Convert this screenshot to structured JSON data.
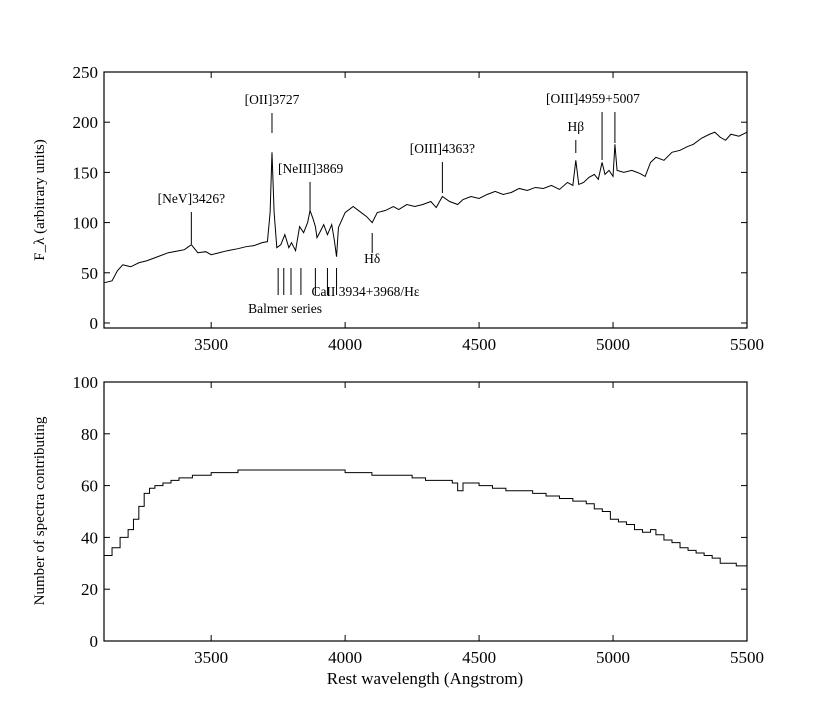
{
  "chart_data": [
    {
      "type": "line",
      "title": "",
      "xlabel": "",
      "ylabel": "F_λ (arbitrary units)",
      "xlim": [
        3100,
        5500
      ],
      "ylim": [
        -5,
        250
      ],
      "grid": false,
      "x_ticks": [
        "3500",
        "4000",
        "4500",
        "5000",
        "5500"
      ],
      "y_ticks": [
        "0",
        "50",
        "100",
        "150",
        "200",
        "250"
      ],
      "series": [
        {
          "name": "",
          "points": [
            [
              3100,
              40
            ],
            [
              3130,
              42
            ],
            [
              3150,
              52
            ],
            [
              3170,
              58
            ],
            [
              3200,
              56
            ],
            [
              3230,
              60
            ],
            [
              3260,
              62
            ],
            [
              3300,
              66
            ],
            [
              3340,
              70
            ],
            [
              3380,
              72
            ],
            [
              3400,
              73
            ],
            [
              3426,
              78
            ],
            [
              3450,
              70
            ],
            [
              3480,
              71
            ],
            [
              3500,
              68
            ],
            [
              3530,
              70
            ],
            [
              3560,
              72
            ],
            [
              3600,
              74
            ],
            [
              3630,
              76
            ],
            [
              3660,
              77
            ],
            [
              3690,
              80
            ],
            [
              3710,
              81
            ],
            [
              3720,
              110
            ],
            [
              3727,
              170
            ],
            [
              3735,
              110
            ],
            [
              3745,
              75
            ],
            [
              3760,
              78
            ],
            [
              3775,
              88
            ],
            [
              3790,
              75
            ],
            [
              3800,
              80
            ],
            [
              3815,
              72
            ],
            [
              3830,
              96
            ],
            [
              3845,
              90
            ],
            [
              3860,
              100
            ],
            [
              3869,
              112
            ],
            [
              3880,
              104
            ],
            [
              3889,
              96
            ],
            [
              3895,
              85
            ],
            [
              3905,
              90
            ],
            [
              3920,
              98
            ],
            [
              3934,
              88
            ],
            [
              3950,
              98
            ],
            [
              3960,
              82
            ],
            [
              3968,
              66
            ],
            [
              3975,
              95
            ],
            [
              4000,
              110
            ],
            [
              4030,
              116
            ],
            [
              4060,
              110
            ],
            [
              4080,
              106
            ],
            [
              4101,
              100
            ],
            [
              4120,
              110
            ],
            [
              4150,
              112
            ],
            [
              4180,
              116
            ],
            [
              4200,
              113
            ],
            [
              4230,
              118
            ],
            [
              4260,
              116
            ],
            [
              4290,
              118
            ],
            [
              4320,
              121
            ],
            [
              4340,
              115
            ],
            [
              4363,
              126
            ],
            [
              4390,
              121
            ],
            [
              4420,
              118
            ],
            [
              4440,
              123
            ],
            [
              4470,
              126
            ],
            [
              4500,
              124
            ],
            [
              4530,
              128
            ],
            [
              4560,
              131
            ],
            [
              4590,
              128
            ],
            [
              4620,
              130
            ],
            [
              4650,
              134
            ],
            [
              4680,
              132
            ],
            [
              4710,
              135
            ],
            [
              4740,
              134
            ],
            [
              4770,
              137
            ],
            [
              4800,
              133
            ],
            [
              4830,
              140
            ],
            [
              4850,
              137
            ],
            [
              4861,
              162
            ],
            [
              4872,
              138
            ],
            [
              4890,
              140
            ],
            [
              4910,
              145
            ],
            [
              4930,
              148
            ],
            [
              4945,
              143
            ],
            [
              4959,
              160
            ],
            [
              4970,
              148
            ],
            [
              4985,
              152
            ],
            [
              5000,
              146
            ],
            [
              5007,
              178
            ],
            [
              5015,
              152
            ],
            [
              5040,
              150
            ],
            [
              5070,
              152
            ],
            [
              5100,
              149
            ],
            [
              5120,
              146
            ],
            [
              5140,
              160
            ],
            [
              5160,
              165
            ],
            [
              5190,
              162
            ],
            [
              5220,
              170
            ],
            [
              5250,
              172
            ],
            [
              5280,
              176
            ],
            [
              5300,
              178
            ],
            [
              5330,
              184
            ],
            [
              5360,
              188
            ],
            [
              5380,
              190
            ],
            [
              5400,
              185
            ],
            [
              5420,
              182
            ],
            [
              5440,
              188
            ],
            [
              5470,
              186
            ],
            [
              5500,
              190
            ]
          ]
        }
      ],
      "annotations": [
        {
          "text": "[NeV]3426?",
          "x": 3426
        },
        {
          "text": "[OII]3727",
          "x": 3727
        },
        {
          "text": "[NeIII]3869",
          "x": 3869
        },
        {
          "text": "[OIII]4363?",
          "x": 4363
        },
        {
          "text": "[OIII]4959+5007",
          "x": 5007
        },
        {
          "text": "Hβ",
          "x": 4861
        },
        {
          "text": "Hδ",
          "x": 4101
        },
        {
          "text": "CaII 3934+3968/Hε",
          "x": 3934
        },
        {
          "text": "Balmer series",
          "x": 3750
        }
      ],
      "marker_lines_x": [
        3750,
        3771,
        3798,
        3835,
        3889,
        3934,
        3968
      ]
    },
    {
      "type": "line",
      "title": "",
      "xlabel": "Rest wavelength (Angstrom)",
      "ylabel": "Number of spectra contributing",
      "xlim": [
        3100,
        5500
      ],
      "ylim": [
        0,
        100
      ],
      "grid": false,
      "x_ticks": [
        "3500",
        "4000",
        "4500",
        "5000",
        "5500"
      ],
      "y_ticks": [
        "0",
        "20",
        "40",
        "60",
        "80",
        "100"
      ],
      "series": [
        {
          "name": "",
          "points": [
            [
              3100,
              33
            ],
            [
              3130,
              36
            ],
            [
              3160,
              40
            ],
            [
              3190,
              43
            ],
            [
              3210,
              47
            ],
            [
              3230,
              52
            ],
            [
              3250,
              57
            ],
            [
              3270,
              59
            ],
            [
              3290,
              60
            ],
            [
              3320,
              61
            ],
            [
              3350,
              62
            ],
            [
              3380,
              63
            ],
            [
              3400,
              63
            ],
            [
              3430,
              64
            ],
            [
              3460,
              64
            ],
            [
              3500,
              65
            ],
            [
              3550,
              65
            ],
            [
              3600,
              66
            ],
            [
              3650,
              66
            ],
            [
              3700,
              66
            ],
            [
              3750,
              66
            ],
            [
              3800,
              66
            ],
            [
              3850,
              66
            ],
            [
              3900,
              66
            ],
            [
              3950,
              66
            ],
            [
              4000,
              65
            ],
            [
              4050,
              65
            ],
            [
              4100,
              64
            ],
            [
              4150,
              64
            ],
            [
              4200,
              64
            ],
            [
              4250,
              63
            ],
            [
              4300,
              62
            ],
            [
              4350,
              62
            ],
            [
              4400,
              61
            ],
            [
              4420,
              58
            ],
            [
              4440,
              61
            ],
            [
              4500,
              60
            ],
            [
              4550,
              59
            ],
            [
              4600,
              58
            ],
            [
              4650,
              58
            ],
            [
              4700,
              57
            ],
            [
              4750,
              56
            ],
            [
              4800,
              55
            ],
            [
              4850,
              54
            ],
            [
              4900,
              53
            ],
            [
              4930,
              51
            ],
            [
              4960,
              50
            ],
            [
              4990,
              47
            ],
            [
              5020,
              46
            ],
            [
              5050,
              45
            ],
            [
              5080,
              43
            ],
            [
              5110,
              42
            ],
            [
              5140,
              43
            ],
            [
              5160,
              41
            ],
            [
              5190,
              39
            ],
            [
              5220,
              38
            ],
            [
              5250,
              36
            ],
            [
              5280,
              35
            ],
            [
              5310,
              34
            ],
            [
              5340,
              33
            ],
            [
              5370,
              32
            ],
            [
              5400,
              30
            ],
            [
              5430,
              30
            ],
            [
              5460,
              29
            ],
            [
              5500,
              27
            ]
          ]
        }
      ]
    }
  ]
}
